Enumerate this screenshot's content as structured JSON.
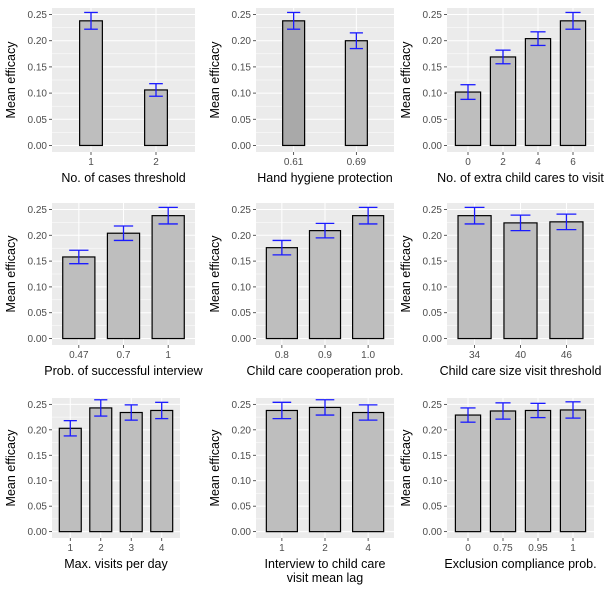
{
  "theme": {
    "panel_bg": "#ebebeb",
    "grid_major": "#ffffff",
    "bar_fill": "#bebebe",
    "bar_fill_alt": "#a9a9a9",
    "bar_stroke": "#000000",
    "errorbar": "#1a1aff",
    "tick_text": "#4d4d4d"
  },
  "chart_data": [
    {
      "type": "bar",
      "xlabel": "No. of cases threshold",
      "ylabel": "Mean efficacy",
      "ylim": [
        0,
        0.25
      ],
      "yticks": [
        "0.00",
        "0.05",
        "0.10",
        "0.15",
        "0.20",
        "0.25"
      ],
      "categories": [
        "1",
        "2"
      ],
      "values": [
        0.238,
        0.106
      ],
      "errors": [
        0.016,
        0.012
      ],
      "grid": true
    },
    {
      "type": "bar",
      "xlabel": "Hand hygiene protection",
      "ylabel": "Mean efficacy",
      "ylim": [
        0,
        0.25
      ],
      "yticks": [
        "0.00",
        "0.05",
        "0.10",
        "0.15",
        "0.20",
        "0.25"
      ],
      "categories": [
        "0.61",
        "0.69"
      ],
      "values": [
        0.238,
        0.2
      ],
      "errors": [
        0.016,
        0.015
      ],
      "fills": [
        "#a9a9a9",
        "#bebebe"
      ],
      "grid": true
    },
    {
      "type": "bar",
      "xlabel": "No. of extra child cares to visit",
      "ylabel": "Mean efficacy",
      "ylim": [
        0,
        0.25
      ],
      "yticks": [
        "0.00",
        "0.05",
        "0.10",
        "0.15",
        "0.20",
        "0.25"
      ],
      "categories": [
        "0",
        "2",
        "4",
        "6"
      ],
      "values": [
        0.102,
        0.169,
        0.204,
        0.238
      ],
      "errors": [
        0.014,
        0.013,
        0.013,
        0.016
      ],
      "grid": true
    },
    {
      "type": "bar",
      "xlabel": "Prob. of successful interview",
      "ylabel": "Mean efficacy",
      "ylim": [
        0,
        0.25
      ],
      "yticks": [
        "0.00",
        "0.05",
        "0.10",
        "0.15",
        "0.20",
        "0.25"
      ],
      "categories": [
        "0.47",
        "0.7",
        "1"
      ],
      "values": [
        0.158,
        0.204,
        0.238
      ],
      "errors": [
        0.013,
        0.014,
        0.016
      ],
      "grid": true
    },
    {
      "type": "bar",
      "xlabel": "Child care cooperation prob.",
      "ylabel": "Mean efficacy",
      "ylim": [
        0,
        0.25
      ],
      "yticks": [
        "0.00",
        "0.05",
        "0.10",
        "0.15",
        "0.20",
        "0.25"
      ],
      "categories": [
        "0.8",
        "0.9",
        "1.0"
      ],
      "values": [
        0.176,
        0.209,
        0.238
      ],
      "errors": [
        0.014,
        0.014,
        0.016
      ],
      "grid": true
    },
    {
      "type": "bar",
      "xlabel": "Child care size visit threshold",
      "ylabel": "Mean efficacy",
      "ylim": [
        0,
        0.25
      ],
      "yticks": [
        "0.00",
        "0.05",
        "0.10",
        "0.15",
        "0.20",
        "0.25"
      ],
      "categories": [
        "34",
        "40",
        "46"
      ],
      "values": [
        0.238,
        0.224,
        0.226
      ],
      "errors": [
        0.016,
        0.015,
        0.015
      ],
      "grid": true
    },
    {
      "type": "bar",
      "xlabel": "Max. visits per day",
      "ylabel": "Mean efficacy",
      "ylim": [
        0,
        0.25
      ],
      "yticks": [
        "0.00",
        "0.05",
        "0.10",
        "0.15",
        "0.20",
        "0.25"
      ],
      "categories": [
        "1",
        "2",
        "3",
        "4"
      ],
      "values": [
        0.203,
        0.243,
        0.234,
        0.238
      ],
      "errors": [
        0.015,
        0.016,
        0.015,
        0.016
      ],
      "grid": true
    },
    {
      "type": "bar",
      "xlabel": "Interview to child care visit mean lag",
      "xlabel_lines": [
        "Interview to child care",
        "visit mean lag"
      ],
      "ylabel": "Mean efficacy",
      "ylim": [
        0,
        0.25
      ],
      "yticks": [
        "0.00",
        "0.05",
        "0.10",
        "0.15",
        "0.20",
        "0.25"
      ],
      "categories": [
        "1",
        "2",
        "4"
      ],
      "values": [
        0.238,
        0.244,
        0.234
      ],
      "errors": [
        0.016,
        0.015,
        0.015
      ],
      "grid": true
    },
    {
      "type": "bar",
      "xlabel": "Exclusion compliance prob.",
      "ylabel": "Mean efficacy",
      "ylim": [
        0,
        0.25
      ],
      "yticks": [
        "0.00",
        "0.05",
        "0.10",
        "0.15",
        "0.20",
        "0.25"
      ],
      "categories": [
        "0",
        "0.75",
        "0.95",
        "1"
      ],
      "values": [
        0.229,
        0.237,
        0.238,
        0.239
      ],
      "errors": [
        0.014,
        0.016,
        0.014,
        0.016
      ],
      "grid": true
    }
  ]
}
